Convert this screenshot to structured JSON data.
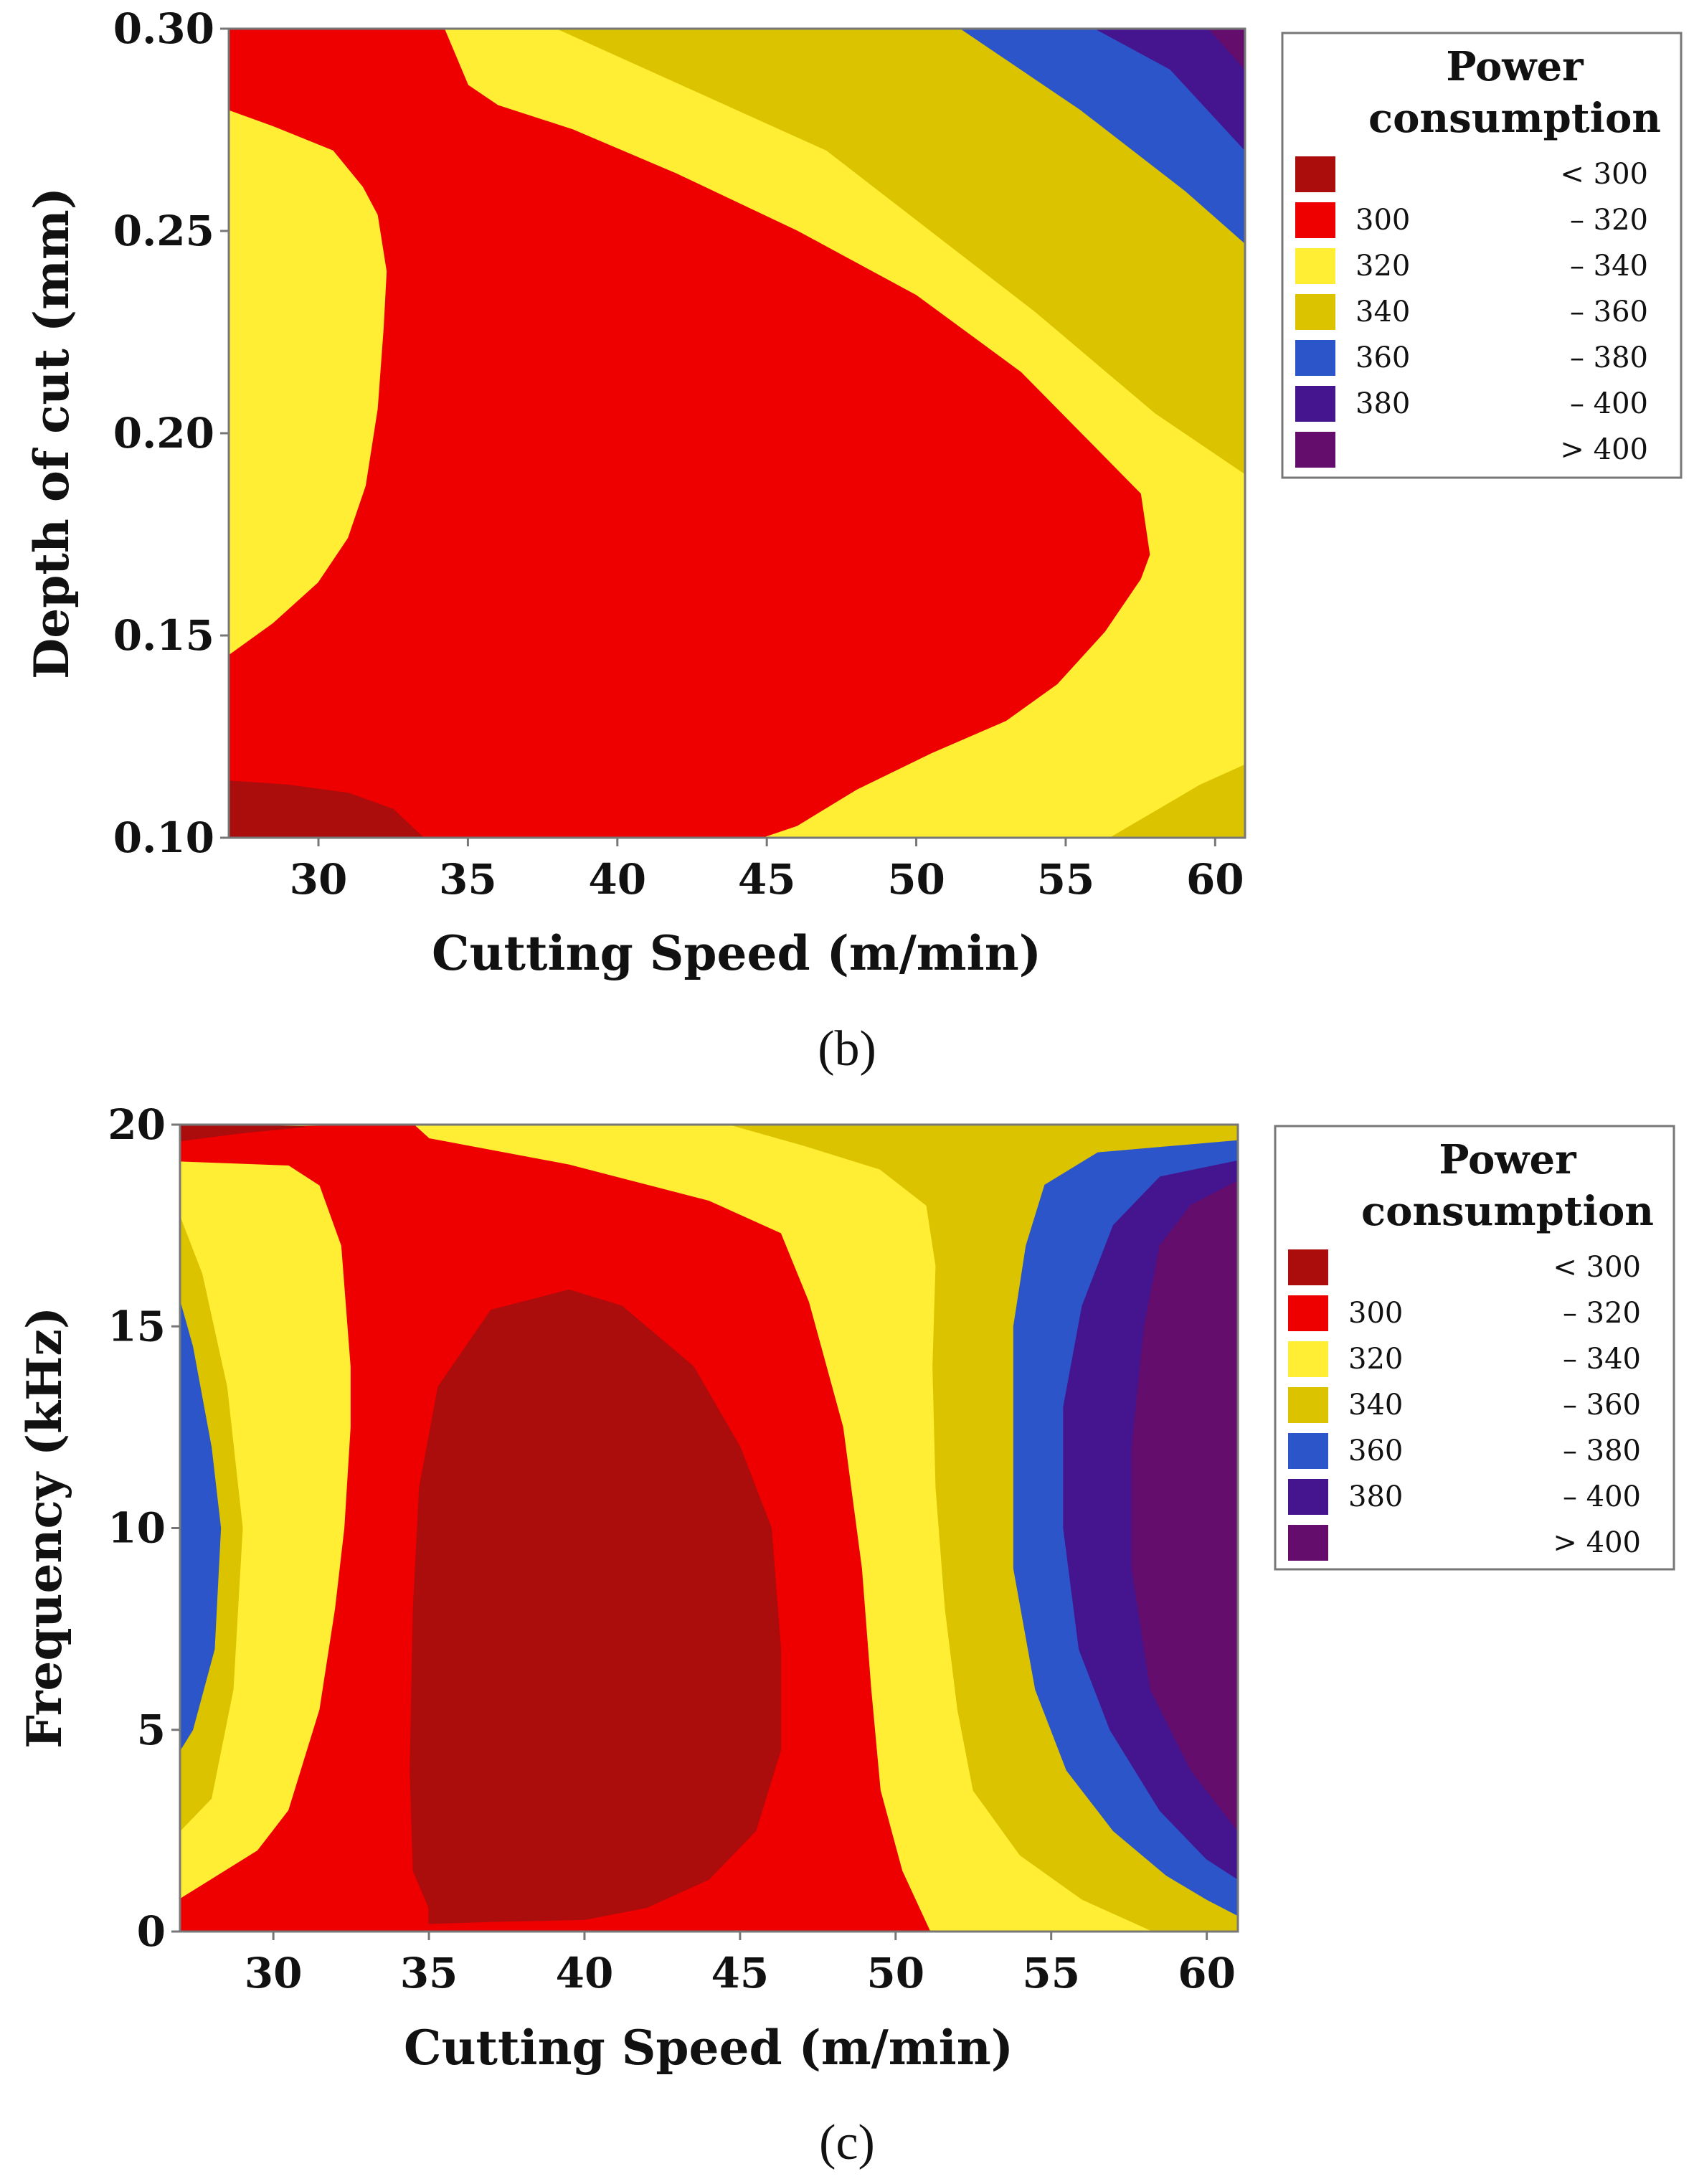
{
  "chart_data": [
    {
      "type": "contour",
      "panel_label": "(b)",
      "xlabel": "Cutting Speed (m/min)",
      "ylabel": "Depth of cut (mm)",
      "xlim": [
        27,
        61
      ],
      "ylim": [
        0.1,
        0.3
      ],
      "x_ticks": [
        "30",
        "35",
        "40",
        "45",
        "50",
        "55",
        "60"
      ],
      "y_ticks": [
        "0.10",
        "0.15",
        "0.20",
        "0.25",
        "0.30"
      ],
      "legend": {
        "title_line1": "Power",
        "title_line2": "consumption",
        "entries": [
          {
            "low": "",
            "high": "< 300",
            "color": "#ab0c0c"
          },
          {
            "low": "300",
            "high": "– 320",
            "color": "#ee0000"
          },
          {
            "low": "320",
            "high": "– 340",
            "color": "#ffee33"
          },
          {
            "low": "340",
            "high": "– 360",
            "color": "#dbc300"
          },
          {
            "low": "360",
            "high": "– 380",
            "color": "#2b55c8"
          },
          {
            "low": "380",
            "high": "– 400",
            "color": "#45158f"
          },
          {
            "low": "",
            "high": "> 400",
            "color": "#650d6c"
          }
        ]
      },
      "regions": [
        {
          "level": 2,
          "points": [
            [
              27,
              0.1
            ],
            [
              61,
              0.1
            ],
            [
              61,
              0.3
            ],
            [
              27,
              0.3
            ]
          ]
        },
        {
          "level": 3,
          "points": [
            [
              38,
              0.3
            ],
            [
              47,
              0.27
            ],
            [
              54,
              0.23
            ],
            [
              58,
              0.205
            ],
            [
              61,
              0.19
            ],
            [
              61,
              0.3
            ]
          ]
        },
        {
          "level": 3,
          "points": [
            [
              56.5,
              0.1
            ],
            [
              59.5,
              0.113
            ],
            [
              61,
              0.118
            ],
            [
              61,
              0.1
            ]
          ]
        },
        {
          "level": 4,
          "points": [
            [
              51.5,
              0.3
            ],
            [
              55.5,
              0.28
            ],
            [
              59,
              0.26
            ],
            [
              61,
              0.247
            ],
            [
              61,
              0.3
            ]
          ]
        },
        {
          "level": 5,
          "points": [
            [
              56,
              0.3
            ],
            [
              58.5,
              0.29
            ],
            [
              61,
              0.27
            ],
            [
              61,
              0.3
            ]
          ]
        },
        {
          "level": 6,
          "points": [
            [
              59.8,
              0.3
            ],
            [
              61,
              0.29
            ],
            [
              61,
              0.3
            ]
          ]
        },
        {
          "level": 1,
          "points": [
            [
              27,
              0.3
            ],
            [
              34.2,
              0.3
            ],
            [
              35,
              0.286
            ],
            [
              36,
              0.281
            ],
            [
              38.5,
              0.275
            ],
            [
              42,
              0.264
            ],
            [
              46,
              0.25
            ],
            [
              50,
              0.234
            ],
            [
              53.5,
              0.215
            ],
            [
              55.5,
              0.2
            ],
            [
              57.5,
              0.185
            ],
            [
              57.8,
              0.17
            ],
            [
              57.5,
              0.164
            ],
            [
              56.3,
              0.151
            ],
            [
              54.7,
              0.138
            ],
            [
              53,
              0.129
            ],
            [
              50.5,
              0.121
            ],
            [
              48,
              0.112
            ],
            [
              46,
              0.103
            ],
            [
              44.8,
              0.1
            ],
            [
              27,
              0.1
            ],
            [
              27,
              0.145
            ],
            [
              28.5,
              0.153
            ],
            [
              30,
              0.163
            ],
            [
              31,
              0.174
            ],
            [
              31.6,
              0.187
            ],
            [
              32,
              0.206
            ],
            [
              32.2,
              0.226
            ],
            [
              32.3,
              0.24
            ],
            [
              32,
              0.254
            ],
            [
              31.5,
              0.261
            ],
            [
              30.5,
              0.27
            ],
            [
              28.5,
              0.276
            ],
            [
              27,
              0.28
            ]
          ]
        },
        {
          "level": 0,
          "points": [
            [
              27,
              0.1
            ],
            [
              27,
              0.114
            ],
            [
              29,
              0.113
            ],
            [
              31,
              0.111
            ],
            [
              32.5,
              0.107
            ],
            [
              33.5,
              0.1
            ]
          ]
        }
      ]
    },
    {
      "type": "contour",
      "panel_label": "(c)",
      "xlabel": "Cutting Speed (m/min)",
      "ylabel": "Frequency (kHz)",
      "xlim": [
        27,
        61
      ],
      "ylim": [
        0,
        20
      ],
      "x_ticks": [
        "30",
        "35",
        "40",
        "45",
        "50",
        "55",
        "60"
      ],
      "y_ticks": [
        "0",
        "5",
        "10",
        "15",
        "20"
      ],
      "legend": {
        "title_line1": "Power",
        "title_line2": "consumption",
        "entries": [
          {
            "low": "",
            "high": "< 300",
            "color": "#ab0c0c"
          },
          {
            "low": "300",
            "high": "– 320",
            "color": "#ee0000"
          },
          {
            "low": "320",
            "high": "– 340",
            "color": "#ffee33"
          },
          {
            "low": "340",
            "high": "– 360",
            "color": "#dbc300"
          },
          {
            "low": "360",
            "high": "– 380",
            "color": "#2b55c8"
          },
          {
            "low": "380",
            "high": "– 400",
            "color": "#45158f"
          },
          {
            "low": "",
            "high": "> 400",
            "color": "#650d6c"
          }
        ]
      },
      "regions": [
        {
          "level": 2,
          "points": [
            [
              27,
              0
            ],
            [
              61,
              0
            ],
            [
              61,
              20
            ],
            [
              27,
              20
            ]
          ]
        },
        {
          "level": 3,
          "points": [
            [
              52,
              20
            ],
            [
              61,
              20
            ],
            [
              61,
              0
            ],
            [
              58.3,
              0
            ],
            [
              56,
              0.8
            ],
            [
              54,
              1.9
            ],
            [
              52.5,
              3.5
            ],
            [
              52,
              5.5
            ],
            [
              51.6,
              8
            ],
            [
              51.3,
              11
            ],
            [
              51.2,
              14
            ],
            [
              51.3,
              16.5
            ],
            [
              51,
              18
            ],
            [
              49.5,
              18.9
            ],
            [
              47,
              19.5
            ],
            [
              44.7,
              20
            ]
          ]
        },
        {
          "level": 3,
          "points": [
            [
              27,
              17.7
            ],
            [
              27.7,
              16.3
            ],
            [
              28.5,
              13.5
            ],
            [
              29,
              10
            ],
            [
              28.7,
              6
            ],
            [
              28,
              3.3
            ],
            [
              27,
              2.5
            ]
          ]
        },
        {
          "level": 4,
          "points": [
            [
              61,
              19.6
            ],
            [
              56.5,
              19.3
            ],
            [
              54.8,
              18.5
            ],
            [
              54.2,
              17
            ],
            [
              53.8,
              15
            ],
            [
              53.8,
              12
            ],
            [
              53.8,
              9
            ],
            [
              54.5,
              6
            ],
            [
              55.5,
              4
            ],
            [
              57,
              2.5
            ],
            [
              58.7,
              1.4
            ],
            [
              60,
              0.8
            ],
            [
              61,
              0.4
            ]
          ]
        },
        {
          "level": 4,
          "points": [
            [
              27,
              15.6
            ],
            [
              27.4,
              14.5
            ],
            [
              28,
              12
            ],
            [
              28.3,
              10
            ],
            [
              28.1,
              7
            ],
            [
              27.4,
              5
            ],
            [
              27,
              4.5
            ]
          ]
        },
        {
          "level": 5,
          "points": [
            [
              61,
              19.1
            ],
            [
              58.5,
              18.7
            ],
            [
              57,
              17.5
            ],
            [
              56,
              15.5
            ],
            [
              55.4,
              13
            ],
            [
              55.4,
              10
            ],
            [
              55.9,
              7
            ],
            [
              56.9,
              5
            ],
            [
              58.5,
              3
            ],
            [
              60,
              1.8
            ],
            [
              61,
              1.3
            ]
          ]
        },
        {
          "level": 6,
          "points": [
            [
              61,
              18.6
            ],
            [
              59.5,
              18
            ],
            [
              58.5,
              17
            ],
            [
              58,
              15
            ],
            [
              57.6,
              12
            ],
            [
              57.6,
              9
            ],
            [
              58.2,
              6
            ],
            [
              59.5,
              4
            ],
            [
              61,
              2.5
            ]
          ]
        },
        {
          "level": 1,
          "points": [
            [
              27,
              19.9
            ],
            [
              34.5,
              20
            ],
            [
              35,
              19.65
            ],
            [
              39.5,
              19
            ],
            [
              44,
              18.1
            ],
            [
              46.3,
              17.3
            ],
            [
              47.2,
              15.6
            ],
            [
              48.3,
              12.5
            ],
            [
              48.9,
              9
            ],
            [
              49.2,
              6
            ],
            [
              49.5,
              3.5
            ],
            [
              50.2,
              1.5
            ],
            [
              51.1,
              0
            ],
            [
              27,
              0
            ],
            [
              27,
              0.8
            ],
            [
              29.5,
              2.0
            ],
            [
              30.5,
              3.0
            ],
            [
              31.5,
              5.5
            ],
            [
              32,
              8
            ],
            [
              32.3,
              10
            ],
            [
              32.5,
              12.5
            ],
            [
              32.5,
              14
            ],
            [
              32.2,
              17
            ],
            [
              31.5,
              18.5
            ],
            [
              30.5,
              19
            ],
            [
              27,
              19.1
            ]
          ]
        },
        {
          "level": 0,
          "points": [
            [
              35,
              0.2
            ],
            [
              37,
              0.25
            ],
            [
              40,
              0.3
            ],
            [
              42,
              0.6
            ],
            [
              44,
              1.3
            ],
            [
              45.5,
              2.5
            ],
            [
              46.3,
              4.5
            ],
            [
              46.3,
              7
            ],
            [
              46,
              10
            ],
            [
              45,
              12
            ],
            [
              43.5,
              14
            ],
            [
              41.2,
              15.5
            ],
            [
              39.5,
              15.9
            ],
            [
              37,
              15.4
            ],
            [
              35.3,
              13.5
            ],
            [
              34.7,
              11
            ],
            [
              34.5,
              8
            ],
            [
              34.4,
              4
            ],
            [
              34.5,
              1.5
            ],
            [
              35,
              0.6
            ]
          ]
        },
        {
          "level": 0,
          "points": [
            [
              27,
              19.6
            ],
            [
              29,
              19.8
            ],
            [
              31,
              19.95
            ],
            [
              27,
              20
            ]
          ]
        }
      ]
    }
  ]
}
